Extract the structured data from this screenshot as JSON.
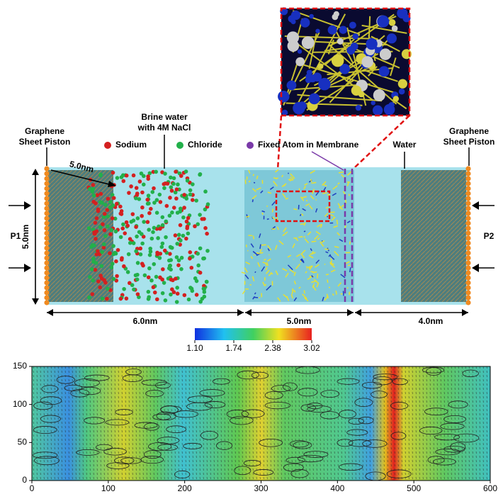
{
  "schematic": {
    "left_piston": [
      "Graphene",
      "Sheet Piston"
    ],
    "brine": [
      "Brine water",
      "with 4M NaCl"
    ],
    "legend": [
      {
        "label": "Sodium",
        "color": "#d42020"
      },
      {
        "label": "Chloride",
        "color": "#22b04a"
      },
      {
        "label": "Fixed Atom in Membrane",
        "color": "#7a3aa8"
      }
    ],
    "water": "Water",
    "right_piston": [
      "Graphene",
      "Sheet Piston"
    ],
    "dims": {
      "diagonal": "5.0nm",
      "height": "5.0nm",
      "left": "6.0nm",
      "middle": "5.0nm",
      "right": "4.0nm"
    },
    "pressures": [
      "P1",
      "P2"
    ]
  },
  "colorbar": {
    "lim": [
      1.1,
      3.02
    ],
    "ticks": [
      {
        "value": 1.1,
        "label": "1.10"
      },
      1.74,
      2.38,
      3.02
    ]
  },
  "heatmap": {
    "xlim": [
      0,
      600
    ],
    "xticks": [
      0,
      100,
      200,
      300,
      400,
      500,
      600
    ],
    "ylim": [
      0,
      150
    ],
    "yticks": [
      0,
      50,
      100,
      150
    ]
  }
}
